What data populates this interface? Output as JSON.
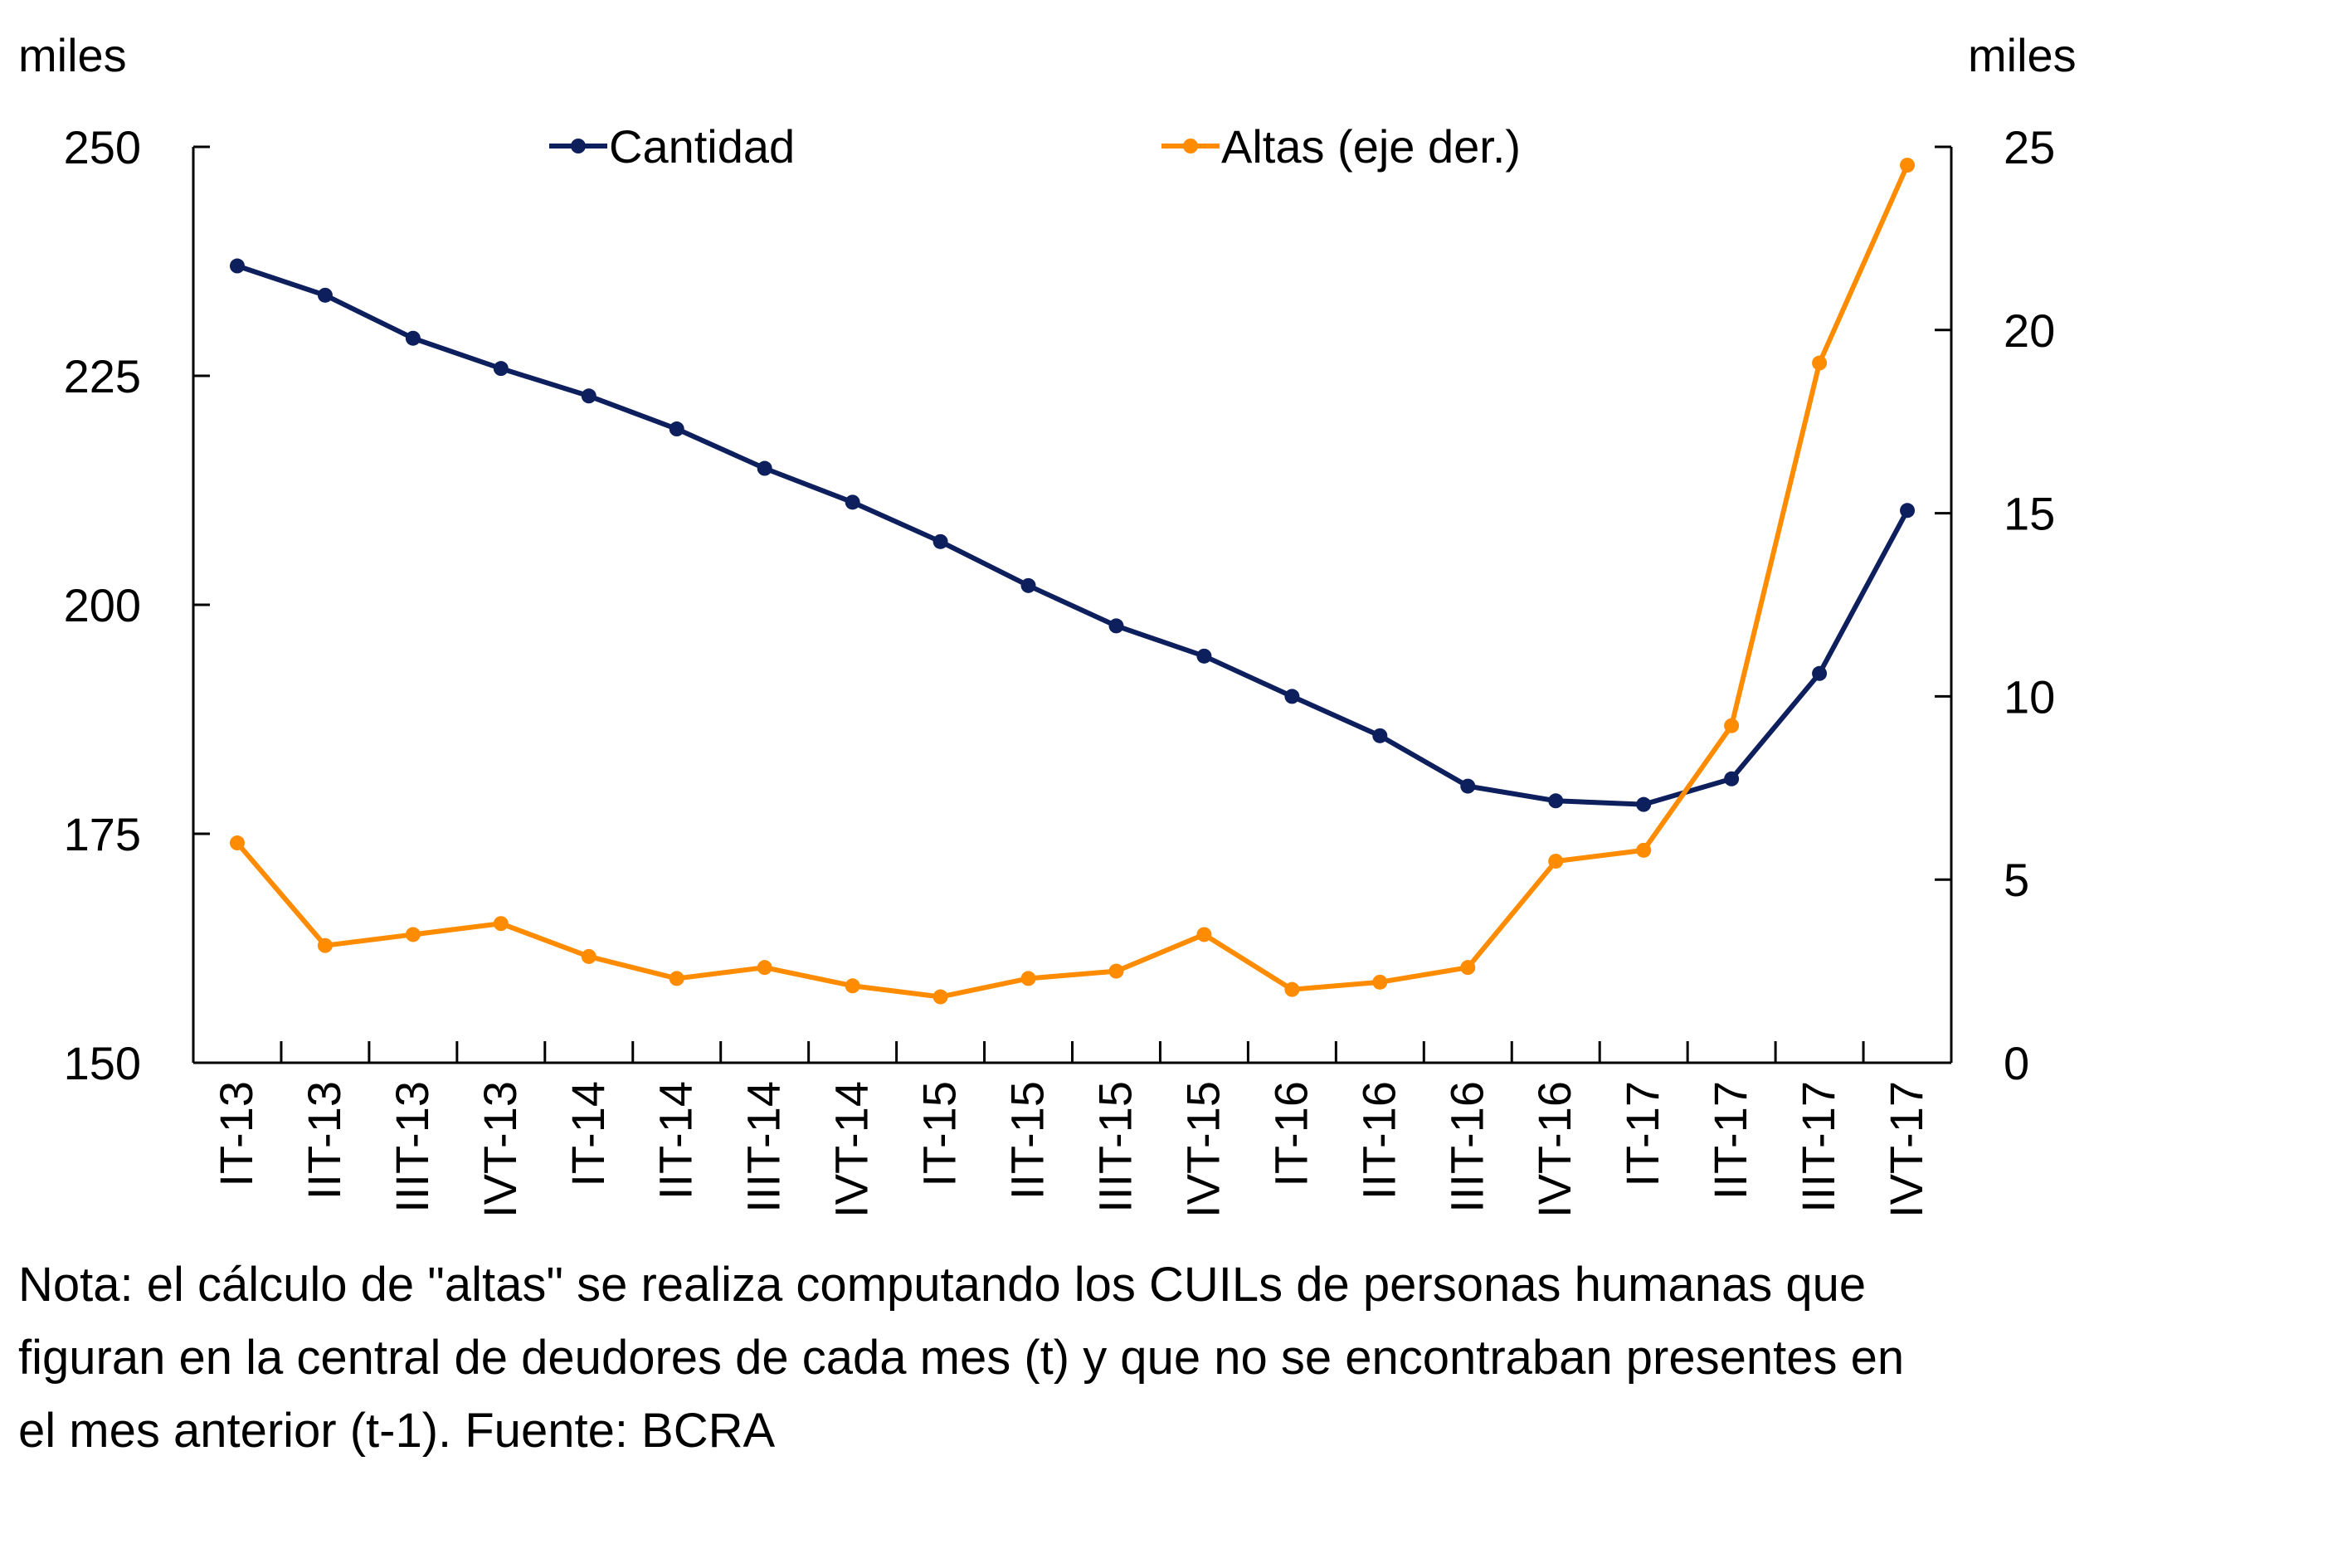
{
  "chart_data": {
    "type": "line",
    "title": "",
    "categories": [
      "IT-13",
      "IIT-13",
      "IIIT-13",
      "IVT-13",
      "IT-14",
      "IIT-14",
      "IIIT-14",
      "IVT-14",
      "IT-15",
      "IIT-15",
      "IIIT-15",
      "IVT-15",
      "IT-16",
      "IIT-16",
      "IIIT-16",
      "IVT-16",
      "IT-17",
      "IIT-17",
      "IIIT-17",
      "IVT-17"
    ],
    "series": [
      {
        "name": "Cantidad",
        "axis": "left",
        "color": "#0d1f5c",
        "values": [
          237.0,
          233.8,
          229.1,
          225.8,
          222.8,
          219.2,
          214.9,
          211.2,
          206.9,
          202.1,
          197.7,
          194.4,
          190.0,
          185.7,
          180.2,
          178.6,
          178.2,
          181.0,
          192.5,
          210.3
        ]
      },
      {
        "name": "Altas (eje der.)",
        "axis": "right",
        "color": "#ff8c00",
        "values": [
          6.0,
          3.2,
          3.5,
          3.8,
          2.9,
          2.3,
          2.6,
          2.1,
          1.8,
          2.3,
          2.5,
          3.5,
          2.0,
          2.2,
          2.6,
          5.5,
          5.8,
          9.2,
          19.1,
          24.5
        ]
      }
    ],
    "ylabel": "miles",
    "ylabel_right": "miles",
    "xlabel": "",
    "ylim": [
      150,
      250
    ],
    "yticks": [
      150,
      175,
      200,
      225,
      250
    ],
    "ylim_right": [
      0,
      25
    ],
    "yticks_right": [
      0,
      5,
      10,
      15,
      20,
      25
    ],
    "grid": false,
    "legend_position": "top-center"
  },
  "note": {
    "lines": [
      "Nota: el cálculo de \"altas\" se realiza computando los CUILs de personas humanas que",
      "figuran en la central de deudores de cada mes (t) y que no se encontraban presentes en",
      "el mes anterior (t-1). Fuente: BCRA"
    ]
  }
}
